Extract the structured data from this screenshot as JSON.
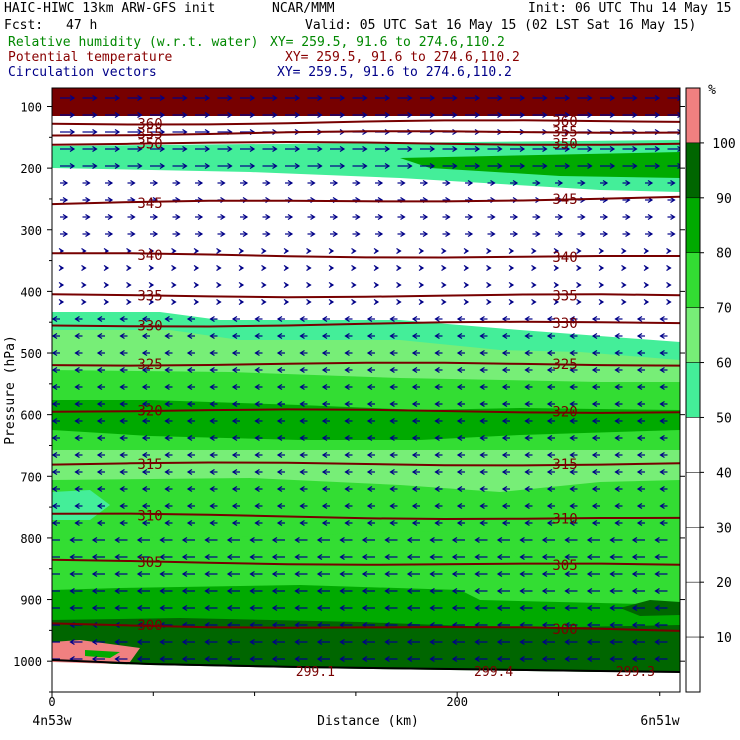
{
  "header": {
    "model": "HAIC-HIWC 13km ARW-GFS init",
    "org": "NCAR/MMM",
    "init": "Init: 06 UTC Thu 14 May 15",
    "fcst": "Fcst:",
    "fcst_hours": "47 h",
    "valid": "Valid: 05 UTC Sat 16 May 15 (02 LST Sat 16 May 15)",
    "field1": "Relative humidity (w.r.t. water)",
    "field2": "Potential temperature",
    "field3": "Circulation vectors",
    "xy": "XY= 259.5, 91.6 to 274.6,110.2"
  },
  "colors": {
    "rh_0_10": "#F08080",
    "rh_50_60": "#44EE99",
    "rh_60_70": "#77EE77",
    "rh_70_80": "#33DD33",
    "rh_80_90": "#00AA00",
    "rh_90_100": "#006600",
    "rh_100": "#770000",
    "theta": "#770000",
    "vectors": "#000088",
    "field1_text": "#008800",
    "field2_text": "#880000",
    "field3_text": "#000088"
  },
  "chart_data": {
    "type": "cross-section",
    "xlabel": "Distance (km)",
    "ylabel": "Pressure (hPa)",
    "xlim": [
      0,
      310
    ],
    "ylim": [
      1050,
      70
    ],
    "x_ticks": [
      0,
      200
    ],
    "y_ticks": [
      100,
      200,
      300,
      400,
      500,
      600,
      700,
      800,
      900,
      1000
    ],
    "left_endpoint": "4n53w",
    "right_endpoint": "6n51w",
    "colorbar": {
      "unit": "%",
      "levels": [
        10,
        20,
        30,
        40,
        50,
        60,
        70,
        80,
        90,
        100
      ]
    },
    "isentropes": [
      {
        "value": 360,
        "label": "360",
        "p_left": 128,
        "p_right": 123
      },
      {
        "value": 355,
        "label": "355",
        "p_left": 145,
        "p_right": 140
      },
      {
        "value": 350,
        "label": "350",
        "p_left": 160,
        "p_right": 160
      },
      {
        "value": 345,
        "label": "345",
        "p_left": 258,
        "p_right": 248
      },
      {
        "value": 340,
        "label": "340",
        "p_left": 340,
        "p_right": 345
      },
      {
        "value": 335,
        "label": "335",
        "p_left": 407,
        "p_right": 407
      },
      {
        "value": 330,
        "label": "330",
        "p_left": 456,
        "p_right": 450
      },
      {
        "value": 325,
        "label": "325",
        "p_left": 518,
        "p_right": 518
      },
      {
        "value": 320,
        "label": "320",
        "p_left": 593,
        "p_right": 595
      },
      {
        "value": 315,
        "label": "315",
        "p_left": 680,
        "p_right": 680
      },
      {
        "value": 310,
        "label": "310",
        "p_left": 762,
        "p_right": 770
      },
      {
        "value": 305,
        "label": "305",
        "p_left": 838,
        "p_right": 845
      },
      {
        "value": 300,
        "label": "300",
        "p_left": 940,
        "p_right": 950
      }
    ],
    "surface_labels": [
      {
        "label": "299.1",
        "x": 130
      },
      {
        "label": "299.4",
        "x": 218
      },
      {
        "label": "299.3",
        "x": 288
      }
    ]
  }
}
